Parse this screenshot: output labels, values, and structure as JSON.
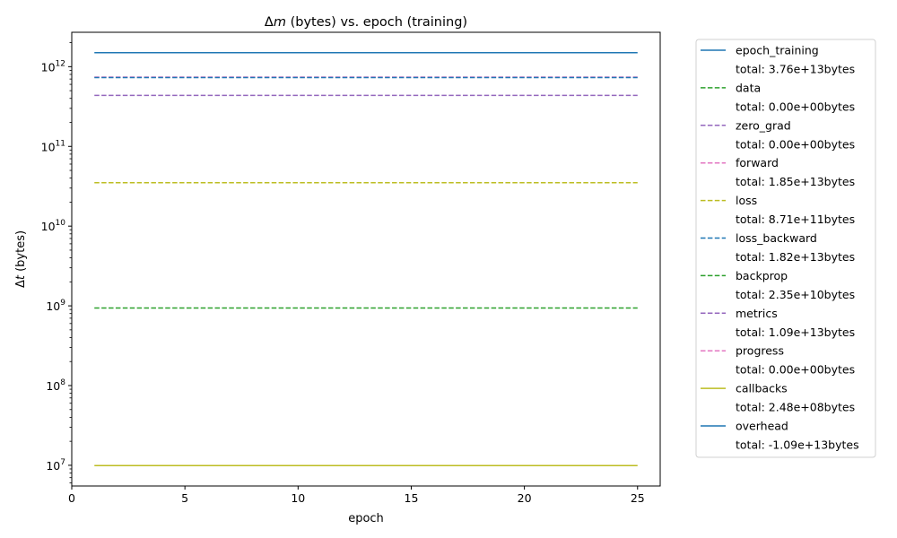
{
  "chart_data": {
    "type": "line",
    "title": "Δm (bytes) vs. epoch (training)",
    "xlabel": "epoch",
    "ylabel": "Δt (bytes)",
    "xlim": [
      0,
      26
    ],
    "ylim": [
      5500000.0,
      2700000000000.0
    ],
    "yscale": "log",
    "xticks": [
      0,
      5,
      10,
      15,
      20,
      25
    ],
    "yticks": [
      {
        "value": 10000000.0,
        "label_base": "10",
        "label_exp": "7"
      },
      {
        "value": 100000000.0,
        "label_base": "10",
        "label_exp": "8"
      },
      {
        "value": 1000000000.0,
        "label_base": "10",
        "label_exp": "9"
      },
      {
        "value": 10000000000.0,
        "label_base": "10",
        "label_exp": "10"
      },
      {
        "value": 100000000000.0,
        "label_base": "10",
        "label_exp": "11"
      },
      {
        "value": 1000000000000.0,
        "label_base": "10",
        "label_exp": "12"
      }
    ],
    "x": [
      1,
      25
    ],
    "legend_position": "outside-right",
    "series": [
      {
        "name": "epoch_training",
        "total": "total: 3.76e+13bytes",
        "color": "#1f77b4",
        "dash": "solid",
        "values": [
          1500000000000.0,
          1500000000000.0
        ],
        "drawn": true
      },
      {
        "name": "data",
        "total": "total: 0.00e+00bytes",
        "color": "#2ca02c",
        "dash": "dashed",
        "values": [
          0,
          0
        ],
        "drawn": false
      },
      {
        "name": "zero_grad",
        "total": "total: 0.00e+00bytes",
        "color": "#9467bd",
        "dash": "dashed",
        "values": [
          0,
          0
        ],
        "drawn": false
      },
      {
        "name": "forward",
        "total": "total: 1.85e+13bytes",
        "color": "#e377c2",
        "dash": "dashed",
        "values": [
          740000000000.0,
          740000000000.0
        ],
        "drawn": true
      },
      {
        "name": "loss",
        "total": "total: 8.71e+11bytes",
        "color": "#bcbd22",
        "dash": "dashed",
        "values": [
          35000000000.0,
          35000000000.0
        ],
        "drawn": true
      },
      {
        "name": "loss_backward",
        "total": "total: 1.82e+13bytes",
        "color": "#1f77b4",
        "dash": "dashed",
        "values": [
          730000000000.0,
          730000000000.0
        ],
        "drawn": true
      },
      {
        "name": "backprop",
        "total": "total: 2.35e+10bytes",
        "color": "#2ca02c",
        "dash": "dashed",
        "values": [
          940000000.0,
          940000000.0
        ],
        "drawn": true
      },
      {
        "name": "metrics",
        "total": "total: 1.09e+13bytes",
        "color": "#9467bd",
        "dash": "dashed",
        "values": [
          436000000000.0,
          436000000000.0
        ],
        "drawn": true
      },
      {
        "name": "progress",
        "total": "total: 0.00e+00bytes",
        "color": "#e377c2",
        "dash": "dashed",
        "values": [
          0,
          0
        ],
        "drawn": false
      },
      {
        "name": "callbacks",
        "total": "total: 2.48e+08bytes",
        "color": "#bcbd22",
        "dash": "solid",
        "values": [
          9900000.0,
          9900000.0
        ],
        "drawn": true
      },
      {
        "name": "overhead",
        "total": "total: -1.09e+13bytes",
        "color": "#1f77b4",
        "dash": "solid",
        "values": [
          0,
          0
        ],
        "drawn": false
      }
    ]
  }
}
